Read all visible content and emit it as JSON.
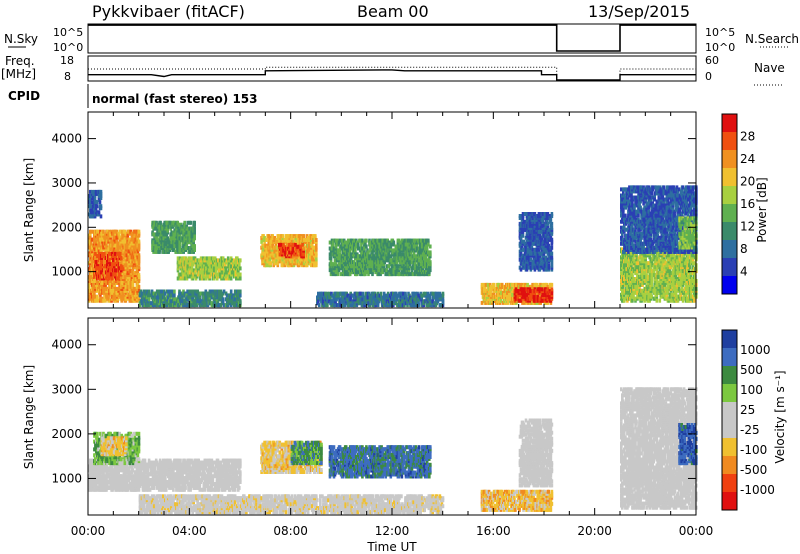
{
  "header": {
    "station": "Pykkvibaer (fitACF)",
    "beam": "Beam 00",
    "date": "13/Sep/2015"
  },
  "params": {
    "nsky_label": "N.Sky",
    "nsky_ticks": [
      "10^5",
      "10^0"
    ],
    "nsearch_label": "N.Search",
    "nsearch_ticks": [
      "10^5",
      "10^0"
    ],
    "freq_label": "Freq.",
    "freq_unit": "[MHz]",
    "freq_ticks": [
      "18",
      "8"
    ],
    "nave_label": "Nave",
    "nave_ticks": [
      "60",
      "0"
    ],
    "cpid_label": "CPID",
    "cpid_text": "normal (fast stereo) 153"
  },
  "colors": {
    "power": [
      "#0000ee",
      "#2a3fb4",
      "#2e6fa0",
      "#3a8a6a",
      "#5fb050",
      "#a8d040",
      "#f0c030",
      "#f09020",
      "#f05010",
      "#e01010"
    ],
    "velocity": [
      "#1f3fa0",
      "#3d6cc0",
      "#3c8a40",
      "#7cc840",
      "#c8c8c8",
      "#c8c8c8",
      "#f0c030",
      "#f08a20",
      "#f04010",
      "#e01010"
    ],
    "accent": "#000000"
  },
  "chart_data": [
    {
      "type": "line",
      "title": "N.Sky / N.Search",
      "x": [
        "00:00",
        "18:30",
        "18:30",
        "21:00",
        "21:00",
        "24:00"
      ],
      "series": [
        {
          "name": "N.Sky",
          "values": [
            150000,
            150000,
            1,
            1,
            150000,
            150000
          ]
        }
      ],
      "y_scale": "log",
      "ylim": [
        1,
        100000
      ]
    },
    {
      "type": "line",
      "title": "Freq. [MHz] / Nave",
      "x_hours": [
        0,
        2.5,
        3.0,
        3.3,
        7.0,
        7.0,
        12.0,
        12.5,
        17.9,
        17.9,
        18.5,
        18.5,
        21.0,
        21.0,
        24.0
      ],
      "series": [
        {
          "name": "Freq.",
          "values": [
            10.4,
            10.4,
            9.6,
            10.4,
            10.4,
            12.2,
            12.6,
            12.2,
            12.2,
            10.4,
            10.4,
            8,
            8,
            10.4,
            10.4
          ]
        },
        {
          "name": "Nave",
          "values": [
            30,
            30,
            30,
            30,
            30,
            35,
            35,
            35,
            35,
            35,
            35,
            0,
            0,
            30,
            30
          ]
        }
      ],
      "ylim_freq": [
        8,
        18
      ],
      "ylim_nave": [
        0,
        60
      ]
    },
    {
      "type": "heatmap",
      "ylabel": "Slant Range [km]",
      "xlabel": "Time UT",
      "x_ticks": [
        "00:00",
        "04:00",
        "08:00",
        "12:00",
        "16:00",
        "20:00",
        "00:00"
      ],
      "y_ticks": [
        "1000",
        "2000",
        "3000",
        "4000"
      ],
      "xlim_hours": [
        0,
        24
      ],
      "ylim_km": [
        180,
        4600
      ],
      "colorbar": {
        "label": "Power [dB]",
        "ticks": [
          "4",
          "8",
          "12",
          "16",
          "20",
          "24",
          "28"
        ],
        "range": [
          0,
          30
        ]
      },
      "regions": [
        {
          "t0": 0.0,
          "t1": 2.0,
          "r0": 300,
          "r1": 1900,
          "v": 22
        },
        {
          "t0": 0.2,
          "t1": 1.3,
          "r0": 800,
          "r1": 1400,
          "v": 26
        },
        {
          "t0": 2.5,
          "t1": 4.2,
          "r0": 1400,
          "r1": 2100,
          "v": 12
        },
        {
          "t0": 3.5,
          "t1": 6.0,
          "r0": 800,
          "r1": 1300,
          "v": 16
        },
        {
          "t0": 2.0,
          "t1": 6.0,
          "r0": 200,
          "r1": 550,
          "v": 10
        },
        {
          "t0": 6.8,
          "t1": 9.0,
          "r0": 1100,
          "r1": 1800,
          "v": 20
        },
        {
          "t0": 7.5,
          "t1": 8.5,
          "r0": 1300,
          "r1": 1600,
          "v": 26
        },
        {
          "t0": 9.5,
          "t1": 13.5,
          "r0": 900,
          "r1": 1700,
          "v": 12
        },
        {
          "t0": 9.0,
          "t1": 14.0,
          "r0": 200,
          "r1": 500,
          "v": 8
        },
        {
          "t0": 15.5,
          "t1": 18.3,
          "r0": 250,
          "r1": 700,
          "v": 20
        },
        {
          "t0": 16.8,
          "t1": 18.3,
          "r0": 300,
          "r1": 600,
          "v": 28
        },
        {
          "t0": 17.0,
          "t1": 18.3,
          "r0": 1000,
          "r1": 2300,
          "v": 6
        },
        {
          "t0": 0.0,
          "t1": 0.5,
          "r0": 2200,
          "r1": 2800,
          "v": 6
        },
        {
          "t0": 21.0,
          "t1": 24.0,
          "r0": 300,
          "r1": 1500,
          "v": 16
        },
        {
          "t0": 21.0,
          "t1": 24.0,
          "r0": 1400,
          "r1": 2900,
          "v": 6
        },
        {
          "t0": 23.3,
          "t1": 24.0,
          "r0": 1500,
          "r1": 2200,
          "v": 14
        }
      ]
    },
    {
      "type": "heatmap",
      "ylabel": "Slant Range [km]",
      "xlabel": "Time UT",
      "x_ticks": [
        "00:00",
        "04:00",
        "08:00",
        "12:00",
        "16:00",
        "20:00",
        "00:00"
      ],
      "y_ticks": [
        "1000",
        "2000",
        "3000",
        "4000"
      ],
      "xlim_hours": [
        0,
        24
      ],
      "ylim_km": [
        180,
        4600
      ],
      "colorbar": {
        "label": "Velocity [m s⁻¹]",
        "ticks": [
          "1000",
          "500",
          "100",
          "25",
          "-25",
          "-100",
          "-500",
          "-1000"
        ],
        "range": [
          -1200,
          1200
        ]
      },
      "regions": [
        {
          "t0": 0.0,
          "t1": 6.0,
          "r0": 700,
          "r1": 1400,
          "v": 0
        },
        {
          "t0": 0.2,
          "t1": 2.0,
          "r0": 1300,
          "r1": 2000,
          "v": 400
        },
        {
          "t0": 0.5,
          "t1": 1.5,
          "r0": 1500,
          "r1": 1900,
          "v": -300
        },
        {
          "t0": 6.8,
          "t1": 9.2,
          "r0": 1100,
          "r1": 1800,
          "v": -300
        },
        {
          "t0": 8.0,
          "t1": 9.2,
          "r0": 1300,
          "r1": 1800,
          "v": 600
        },
        {
          "t0": 9.5,
          "t1": 13.5,
          "r0": 1000,
          "r1": 1700,
          "v": 800
        },
        {
          "t0": 2.0,
          "t1": 14.0,
          "r0": 200,
          "r1": 600,
          "v": -80
        },
        {
          "t0": 15.5,
          "t1": 18.3,
          "r0": 250,
          "r1": 700,
          "v": -350
        },
        {
          "t0": 17.0,
          "t1": 18.3,
          "r0": 800,
          "r1": 2300,
          "v": 0
        },
        {
          "t0": 21.0,
          "t1": 24.0,
          "r0": 300,
          "r1": 3000,
          "v": 0
        },
        {
          "t0": 23.3,
          "t1": 24.0,
          "r0": 1300,
          "r1": 2200,
          "v": 900
        }
      ]
    }
  ]
}
